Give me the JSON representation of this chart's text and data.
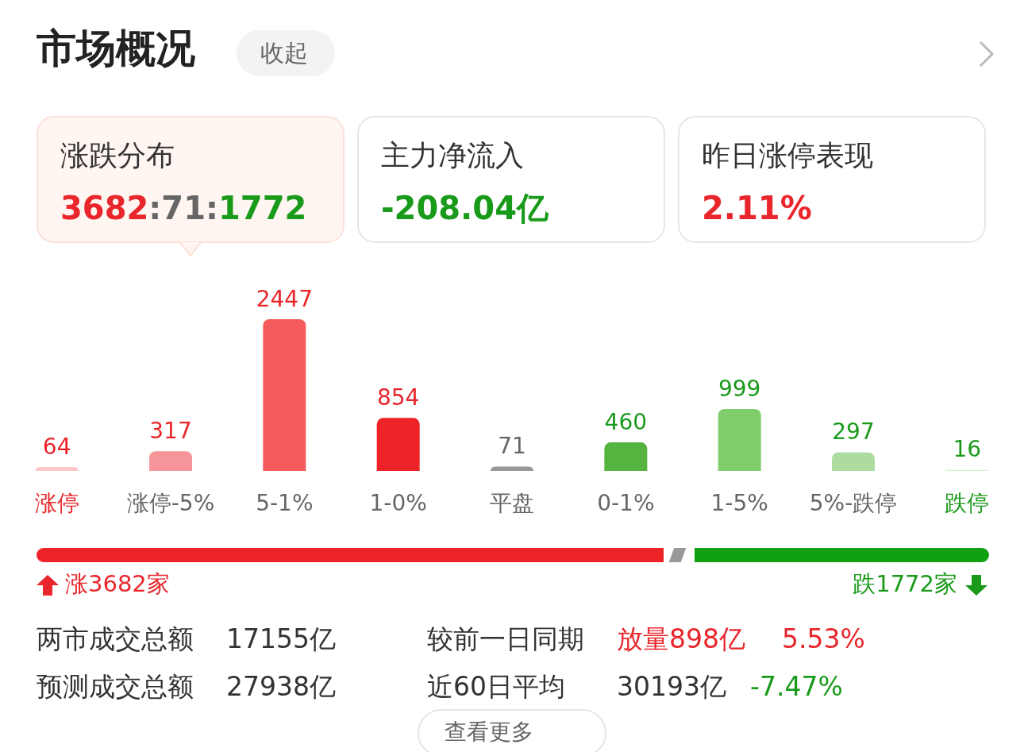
{
  "chart_data": {
    "type": "bar",
    "title": "市场概况",
    "categories": [
      "涨停",
      "涨停-5%",
      "5-1%",
      "1-0%",
      "平盘",
      "0-1%",
      "1-5%",
      "5%-跌停",
      "跌停"
    ],
    "values": [
      64,
      317,
      2447,
      854,
      71,
      460,
      999,
      297,
      16
    ],
    "colors": [
      "#fbc9cc",
      "#f6959a",
      "#f55b5d",
      "#ee2327",
      "#999999",
      "#55b43f",
      "#7fcd6c",
      "#acdc9f",
      "#d6efd0"
    ],
    "data_labels": true,
    "annotations": [
      "收起",
      "涨跌分布",
      "3682:71:1772",
      "主力净流入",
      "-208.04亿",
      "昨日涨停表现",
      "2.11%",
      "涨3682家",
      "跌1772家",
      "两市成交总额",
      "17155亿",
      "较前一日同期",
      "放量898亿",
      "5.53%",
      "预测成交总额",
      "27938亿",
      "近60日平均",
      "30193亿",
      "-7.47%",
      "查看更多"
    ]
  }
}
